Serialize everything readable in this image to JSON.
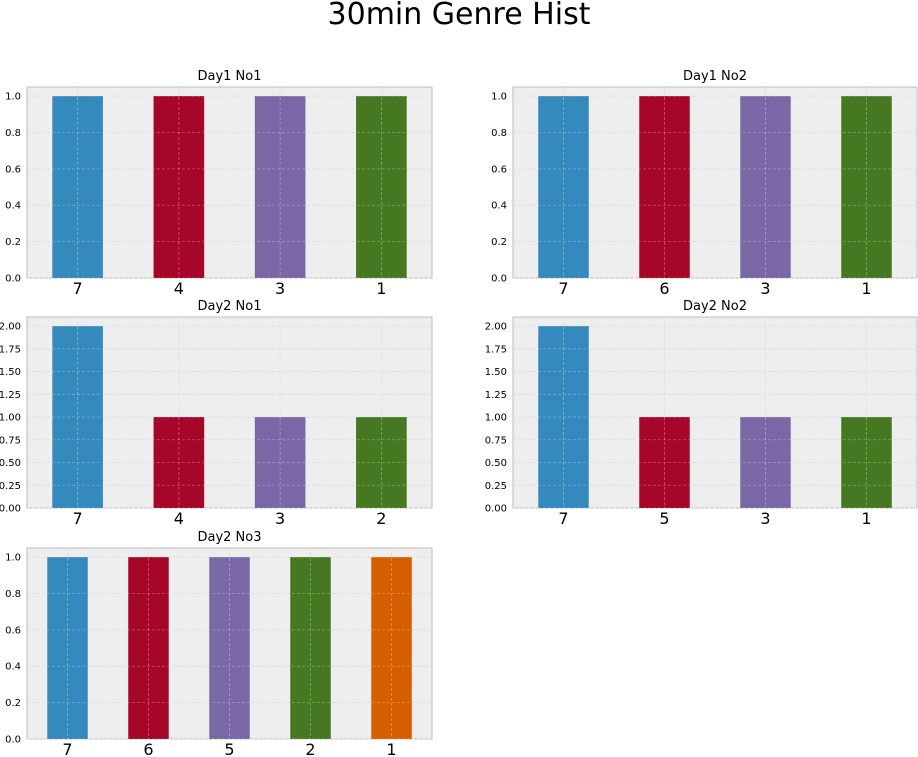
{
  "title": "30min Genre Hist",
  "chart_data": [
    {
      "type": "bar",
      "title": "Day1 No1",
      "categories": [
        "7",
        "4",
        "3",
        "1"
      ],
      "values": [
        1,
        1,
        1,
        1
      ],
      "ylim": [
        0,
        1.05
      ],
      "yticks": [
        "0.0",
        "0.2",
        "0.4",
        "0.6",
        "0.8",
        "1.0"
      ],
      "colors": [
        "#348ABD",
        "#A60628",
        "#7A68A6",
        "#467821"
      ],
      "grid": true
    },
    {
      "type": "bar",
      "title": "Day1 No2",
      "categories": [
        "7",
        "6",
        "3",
        "1"
      ],
      "values": [
        1,
        1,
        1,
        1
      ],
      "ylim": [
        0,
        1.05
      ],
      "yticks": [
        "0.0",
        "0.2",
        "0.4",
        "0.6",
        "0.8",
        "1.0"
      ],
      "colors": [
        "#348ABD",
        "#A60628",
        "#7A68A6",
        "#467821"
      ],
      "grid": true
    },
    {
      "type": "bar",
      "title": "Day2 No1",
      "categories": [
        "7",
        "4",
        "3",
        "2"
      ],
      "values": [
        2,
        1,
        1,
        1
      ],
      "ylim": [
        0,
        2.1
      ],
      "yticks": [
        "0.00",
        "0.25",
        "0.50",
        "0.75",
        "1.00",
        "1.25",
        "1.50",
        "1.75",
        "2.00"
      ],
      "colors": [
        "#348ABD",
        "#A60628",
        "#7A68A6",
        "#467821"
      ],
      "grid": true
    },
    {
      "type": "bar",
      "title": "Day2 No2",
      "categories": [
        "7",
        "5",
        "3",
        "1"
      ],
      "values": [
        2,
        1,
        1,
        1
      ],
      "ylim": [
        0,
        2.1
      ],
      "yticks": [
        "0.00",
        "0.25",
        "0.50",
        "0.75",
        "1.00",
        "1.25",
        "1.50",
        "1.75",
        "2.00"
      ],
      "colors": [
        "#348ABD",
        "#A60628",
        "#7A68A6",
        "#467821"
      ],
      "grid": true
    },
    {
      "type": "bar",
      "title": "Day2 No3",
      "categories": [
        "7",
        "6",
        "5",
        "2",
        "1"
      ],
      "values": [
        1,
        1,
        1,
        1,
        1
      ],
      "ylim": [
        0,
        1.05
      ],
      "yticks": [
        "0.0",
        "0.2",
        "0.4",
        "0.6",
        "0.8",
        "1.0"
      ],
      "colors": [
        "#348ABD",
        "#A60628",
        "#7A68A6",
        "#467821",
        "#D55E00"
      ],
      "grid": true
    }
  ]
}
